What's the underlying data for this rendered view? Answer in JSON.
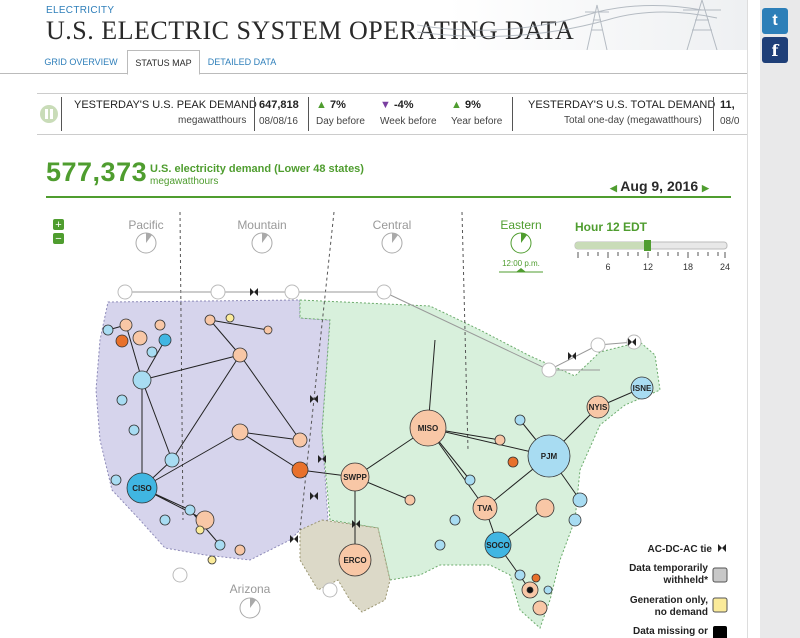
{
  "header": {
    "kicker": "ELECTRICITY",
    "title": "U.S. ELECTRIC SYSTEM OPERATING DATA"
  },
  "tabs": [
    {
      "label": "GRID OVERVIEW"
    },
    {
      "label": "STATUS MAP",
      "active": true
    },
    {
      "label": "DETAILED DATA"
    }
  ],
  "social": {
    "twitter": "twitter-icon",
    "facebook": "facebook-icon"
  },
  "peak": {
    "title": "YESTERDAY'S U.S. PEAK DEMAND",
    "unit": "megawatthours",
    "value": "647,818",
    "date": "08/08/16",
    "changes": [
      {
        "value": "7%",
        "label": "Day before",
        "dir": "up"
      },
      {
        "value": "-4%",
        "label": "Week before",
        "dir": "down"
      },
      {
        "value": "9%",
        "label": "Year before",
        "dir": "up"
      }
    ]
  },
  "total": {
    "title": "YESTERDAY'S U.S. TOTAL DEMAND",
    "subtitle": "Total one-day (megawatthours)",
    "value": "11,",
    "date": "08/0"
  },
  "demand": {
    "value": "577,373",
    "label": "U.S. electricity demand (Lower 48 states)",
    "unit": "megawatthours"
  },
  "date": {
    "value": "Aug 9, 2016"
  },
  "timezones": [
    {
      "name": "Pacific"
    },
    {
      "name": "Mountain"
    },
    {
      "name": "Central"
    },
    {
      "name": "Eastern",
      "time": "12:00 p.m.",
      "active": true
    },
    {
      "name": "Arizona"
    }
  ],
  "hour": {
    "label": "Hour 12 EDT",
    "value": 12,
    "ticks": [
      "6",
      "12",
      "18",
      "24"
    ]
  },
  "zoom": {
    "in": "+",
    "out": "−"
  },
  "regions": [
    "MISO",
    "PJM",
    "NYIS",
    "ISNE",
    "SWPP",
    "TVA",
    "SOCO",
    "ERCO",
    "CISO"
  ],
  "legend": [
    {
      "label": "AC-DC-AC tie"
    },
    {
      "label": "Data temporarily withheld*",
      "color": "#c8c8c8"
    },
    {
      "label": "Generation only, no demand",
      "color": "#fbeb9a"
    },
    {
      "label": "Data missing or",
      "color": "#000000"
    }
  ],
  "colors": {
    "west": "#d6d4ec",
    "east": "#d8f0dc",
    "ercot": "#dcd9c8",
    "accent": "#4f9d2f",
    "node_blue": "#a8dcf2",
    "node_orange": "#f8c7a6"
  }
}
